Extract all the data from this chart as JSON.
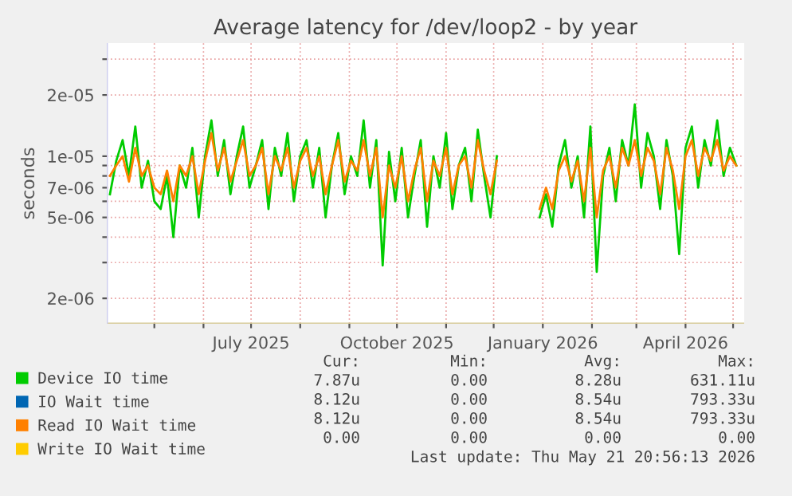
{
  "chart_data": {
    "type": "line",
    "title": "Average latency for /dev/loop2 - by year",
    "ylabel": "seconds",
    "x": [
      "2025-04-03",
      "2025-04-07",
      "2025-04-11",
      "2025-04-15",
      "2025-04-19",
      "2025-04-23",
      "2025-04-27",
      "2025-05-01",
      "2025-05-05",
      "2025-05-09",
      "2025-05-13",
      "2025-05-17",
      "2025-05-21",
      "2025-05-25",
      "2025-05-29",
      "2025-06-02",
      "2025-06-06",
      "2025-06-10",
      "2025-06-14",
      "2025-06-18",
      "2025-06-22",
      "2025-06-26",
      "2025-06-30",
      "2025-07-04",
      "2025-07-08",
      "2025-07-12",
      "2025-07-16",
      "2025-07-20",
      "2025-07-24",
      "2025-07-28",
      "2025-08-01",
      "2025-08-05",
      "2025-08-09",
      "2025-08-13",
      "2025-08-17",
      "2025-08-21",
      "2025-08-25",
      "2025-08-29",
      "2025-09-02",
      "2025-09-06",
      "2025-09-10",
      "2025-09-14",
      "2025-09-18",
      "2025-09-22",
      "2025-09-26",
      "2025-09-30",
      "2025-10-04",
      "2025-10-08",
      "2025-10-12",
      "2025-10-16",
      "2025-10-20",
      "2025-10-24",
      "2025-10-28",
      "2025-11-01",
      "2025-11-05",
      "2025-11-09",
      "2025-11-13",
      "2025-11-17",
      "2025-11-21",
      "2025-11-25",
      "2025-11-29",
      "2025-12-03",
      "2025-12-17",
      "2025-12-30",
      "2026-01-03",
      "2026-01-07",
      "2026-01-11",
      "2026-01-15",
      "2026-01-19",
      "2026-01-23",
      "2026-01-27",
      "2026-01-31",
      "2026-02-04",
      "2026-02-08",
      "2026-02-12",
      "2026-02-16",
      "2026-02-20",
      "2026-02-24",
      "2026-02-28",
      "2026-03-04",
      "2026-03-08",
      "2026-03-12",
      "2026-03-16",
      "2026-03-20",
      "2026-03-24",
      "2026-03-28",
      "2026-04-01",
      "2026-04-05",
      "2026-04-09",
      "2026-04-13",
      "2026-04-17",
      "2026-04-21",
      "2026-04-25",
      "2026-04-29",
      "2026-05-03"
    ],
    "series": [
      {
        "name": "Device IO time",
        "color": "#00cc00",
        "values": [
          6.5e-06,
          9.5e-06,
          1.2e-05,
          8e-06,
          1.4e-05,
          7e-06,
          9.5e-06,
          6e-06,
          5.5e-06,
          8e-06,
          4e-06,
          9e-06,
          7e-06,
          1.1e-05,
          5e-06,
          1e-05,
          1.5e-05,
          8e-06,
          1.2e-05,
          6.5e-06,
          1e-05,
          1.4e-05,
          7e-06,
          9e-06,
          1.2e-05,
          5.5e-06,
          1.1e-05,
          8e-06,
          1.3e-05,
          6e-06,
          1e-05,
          1.2e-05,
          7e-06,
          1.1e-05,
          5e-06,
          9e-06,
          1.3e-05,
          6.5e-06,
          1e-05,
          8e-06,
          1.5e-05,
          7e-06,
          1.2e-05,
          2.9e-06,
          1.05e-05,
          6e-06,
          1.1e-05,
          5e-06,
          8e-06,
          1.2e-05,
          4.5e-06,
          1e-05,
          7e-06,
          1.3e-05,
          5.5e-06,
          9e-06,
          1.1e-05,
          6e-06,
          1.35e-05,
          8e-06,
          5e-06,
          1e-05,
          null,
          5e-06,
          6.5e-06,
          4.5e-06,
          9e-06,
          1.2e-05,
          7e-06,
          1e-05,
          5e-06,
          1.4e-05,
          2.7e-06,
          8e-06,
          1.1e-05,
          6e-06,
          1.2e-05,
          9e-06,
          1.8e-05,
          7e-06,
          1.3e-05,
          1e-05,
          5.5e-06,
          1.2e-05,
          8e-06,
          3.3e-06,
          1.1e-05,
          1.4e-05,
          7e-06,
          1.2e-05,
          9e-06,
          1.5e-05,
          8e-06,
          1.1e-05,
          9e-06
        ]
      },
      {
        "name": "IO Wait time",
        "color": "#0066b3",
        "values": [
          null,
          null,
          null,
          null,
          null,
          null,
          null,
          null,
          null,
          null,
          null,
          null,
          null,
          null,
          null,
          null,
          null,
          null,
          null,
          null,
          null,
          null,
          null,
          null,
          null,
          null,
          null,
          null,
          null,
          null,
          null,
          null,
          null,
          null,
          null,
          null,
          null,
          null,
          null,
          null,
          null,
          null,
          null,
          null,
          null,
          null,
          null,
          null,
          null,
          null,
          null,
          null,
          null,
          null,
          null,
          null,
          null,
          null,
          null,
          null,
          null,
          null,
          null,
          null,
          null,
          null,
          null,
          null,
          null,
          null,
          null,
          null,
          null,
          null,
          null,
          null,
          null,
          null,
          null,
          null,
          null,
          null,
          null,
          null,
          null,
          null,
          null,
          null,
          null,
          null,
          null,
          null,
          null,
          null,
          null
        ]
      },
      {
        "name": "Read IO Wait time",
        "color": "#ff8000",
        "values": [
          8e-06,
          9e-06,
          1e-05,
          7.5e-06,
          1.1e-05,
          8e-06,
          9e-06,
          7e-06,
          6.5e-06,
          8.5e-06,
          6e-06,
          9e-06,
          8e-06,
          1e-05,
          6.5e-06,
          9.5e-06,
          1.3e-05,
          8.5e-06,
          1.1e-05,
          7.5e-06,
          9.5e-06,
          1.2e-05,
          8e-06,
          9e-06,
          1.1e-05,
          6.5e-06,
          1e-05,
          8.5e-06,
          1.1e-05,
          7e-06,
          9.5e-06,
          1.1e-05,
          8e-06,
          1e-05,
          6.5e-06,
          9e-06,
          1.2e-05,
          7.5e-06,
          9.5e-06,
          8.5e-06,
          1.2e-05,
          8e-06,
          1.1e-05,
          5e-06,
          9e-06,
          7e-06,
          1e-05,
          6e-06,
          8.5e-06,
          1.1e-05,
          6e-06,
          9.5e-06,
          8e-06,
          1.1e-05,
          6.5e-06,
          9e-06,
          1e-05,
          7e-06,
          1.2e-05,
          8.5e-06,
          6.5e-06,
          9.5e-06,
          null,
          5.5e-06,
          7e-06,
          5.5e-06,
          8.5e-06,
          1e-05,
          7.5e-06,
          9.5e-06,
          6e-06,
          1.1e-05,
          5e-06,
          8.5e-06,
          1e-05,
          7e-06,
          1.1e-05,
          9e-06,
          1.2e-05,
          8e-06,
          1.1e-05,
          9.5e-06,
          6.5e-06,
          1.1e-05,
          8.5e-06,
          5.5e-06,
          1e-05,
          1.2e-05,
          8e-06,
          1.1e-05,
          9.5e-06,
          1.2e-05,
          8.5e-06,
          1e-05,
          9e-06
        ]
      },
      {
        "name": "Write IO Wait time",
        "color": "#ffcc00",
        "values": [
          null,
          null,
          null,
          null,
          null,
          null,
          null,
          null,
          null,
          null,
          null,
          null,
          null,
          null,
          null,
          null,
          null,
          null,
          null,
          null,
          null,
          null,
          null,
          null,
          null,
          null,
          null,
          null,
          null,
          null,
          null,
          null,
          null,
          null,
          null,
          null,
          null,
          null,
          null,
          null,
          null,
          null,
          null,
          null,
          null,
          null,
          null,
          null,
          null,
          null,
          null,
          null,
          null,
          null,
          null,
          null,
          null,
          null,
          null,
          null,
          null,
          null,
          null,
          null,
          null,
          null,
          null,
          null,
          null,
          null,
          null,
          null,
          null,
          null,
          null,
          null,
          null,
          null,
          null,
          null,
          null,
          null,
          null,
          null,
          null,
          null,
          null,
          null,
          null,
          null,
          null,
          null,
          null,
          null,
          null
        ]
      }
    ],
    "log": "y",
    "ylim": [
      1.5e-06,
      3.6e-05
    ],
    "yticks": [
      {
        "value": 2e-06,
        "label": "2e-06"
      },
      {
        "value": 3e-06,
        "label": null
      },
      {
        "value": 4e-06,
        "label": null
      },
      {
        "value": 5e-06,
        "label": "5e-06"
      },
      {
        "value": 6e-06,
        "label": null
      },
      {
        "value": 7e-06,
        "label": "7e-06"
      },
      {
        "value": 8e-06,
        "label": null
      },
      {
        "value": 9e-06,
        "label": null
      },
      {
        "value": 1e-05,
        "label": "1e-05"
      },
      {
        "value": 2e-05,
        "label": "2e-05"
      },
      {
        "value": 3e-05,
        "label": null
      }
    ],
    "xlim": [
      "2025-04-01",
      "2026-05-08"
    ],
    "xticks": [
      {
        "value": "2025-05-01",
        "label": null
      },
      {
        "value": "2025-06-01",
        "label": null
      },
      {
        "value": "2025-07-01",
        "label": "July 2025"
      },
      {
        "value": "2025-08-01",
        "label": null
      },
      {
        "value": "2025-09-01",
        "label": null
      },
      {
        "value": "2025-10-01",
        "label": "October 2025"
      },
      {
        "value": "2025-11-01",
        "label": null
      },
      {
        "value": "2025-12-01",
        "label": null
      },
      {
        "value": "2026-01-01",
        "label": "January 2026"
      },
      {
        "value": "2026-02-01",
        "label": null
      },
      {
        "value": "2026-03-01",
        "label": null
      },
      {
        "value": "2026-04-01",
        "label": "April 2026"
      },
      {
        "value": "2026-05-01",
        "label": null
      }
    ],
    "grid": true,
    "legend": "bottom left",
    "annotations": [
      "Cur:",
      "Min:",
      "Avg:",
      "Max:",
      "7.87u",
      "0.00",
      "8.28u",
      "631.11u",
      "8.12u",
      "0.00",
      "8.54u",
      "793.33u",
      "8.12u",
      "0.00",
      "8.54u",
      "793.33u",
      "0.00",
      "0.00",
      "0.00",
      "0.00",
      "Last update: Thu May 21 20:56:13 2026"
    ]
  }
}
